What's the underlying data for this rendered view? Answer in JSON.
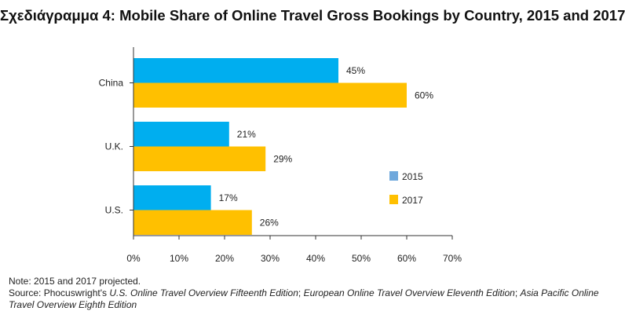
{
  "chart_data": {
    "type": "bar",
    "orientation": "horizontal",
    "title": "Σχεδιάγραμμα 4: Mobile Share of Online Travel Gross Bookings by Country, 2015 and 2017",
    "categories": [
      "China",
      "U.K.",
      "U.S."
    ],
    "series": [
      {
        "name": "2015",
        "values": [
          45,
          21,
          17
        ],
        "color": "#00aeef",
        "labels": [
          "45%",
          "21%",
          "17%"
        ]
      },
      {
        "name": "2017",
        "values": [
          60,
          29,
          26
        ],
        "color": "#ffc000",
        "labels": [
          "60%",
          "29%",
          "26%"
        ]
      }
    ],
    "legend_swatch_colors": {
      "2015": "#6fa8dc",
      "2017": "#ffc000"
    },
    "xlim": [
      0,
      70
    ],
    "xticks": [
      "0%",
      "10%",
      "20%",
      "30%",
      "40%",
      "50%",
      "60%",
      "70%"
    ],
    "legend_position": "right",
    "grid": false
  },
  "notes": {
    "note": "Note: 2015 and 2017 projected.",
    "source_prefix": "Source: Phocuswright's ",
    "source_title_1": "U.S. Online Travel Overview Fifteenth Edition",
    "sep_1": "; ",
    "source_title_2": "European Online Travel Overview Eleventh Edition",
    "sep_2": "; ",
    "source_title_3": "Asia Pacific Online Travel Overview Eighth Edition"
  }
}
